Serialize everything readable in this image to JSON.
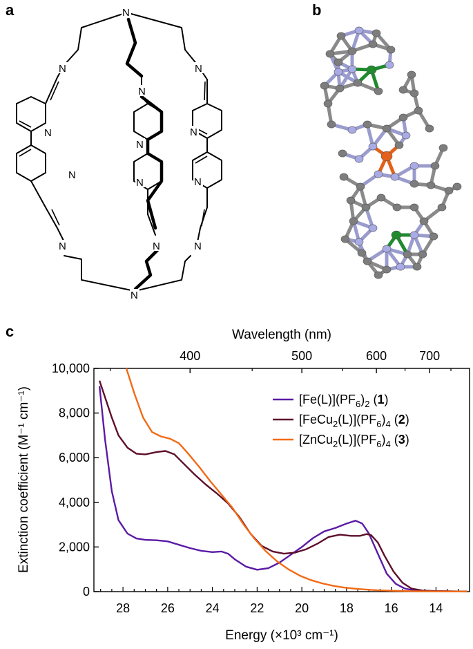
{
  "panels": {
    "a_label": "a",
    "b_label": "b",
    "c_label": "c"
  },
  "structure": {
    "nitrogen_label": "N"
  },
  "crystal": {
    "colors": {
      "carbon": "#7d7d7d",
      "nitrogen": "#a9abe6",
      "copper": "#1f8a2e",
      "iron": "#e2611c"
    }
  },
  "chart_data": {
    "type": "line",
    "xlabel": "Energy (×10³ cm⁻¹)",
    "x2label": "Wavelength (nm)",
    "ylabel": "Extinction coefficient (M⁻¹ cm⁻¹)",
    "xlim": [
      29.3,
      12.5
    ],
    "ylim": [
      0,
      10000
    ],
    "x_ticks": [
      28,
      26,
      24,
      22,
      20,
      18,
      16,
      14
    ],
    "x_tick_labels": [
      "28",
      "26",
      "24",
      "22",
      "20",
      "18",
      "16",
      "14"
    ],
    "y_ticks": [
      0,
      2000,
      4000,
      6000,
      8000,
      10000
    ],
    "y_tick_labels": [
      "0",
      "2,000",
      "4,000",
      "6,000",
      "8,000",
      "10,000"
    ],
    "x2_ticks": [
      400,
      500,
      600,
      700
    ],
    "x2_tick_labels": [
      "400",
      "500",
      "600",
      "700"
    ],
    "legend_position": "top-right",
    "series": [
      {
        "legend_parts": [
          "[Fe(L)](PF",
          "6",
          ")",
          "2",
          " (",
          "1",
          ")"
        ],
        "color": "#5b1aa6",
        "points": [
          [
            29.05,
            9200
          ],
          [
            28.8,
            6800
          ],
          [
            28.5,
            4500
          ],
          [
            28.2,
            3200
          ],
          [
            27.8,
            2600
          ],
          [
            27.4,
            2380
          ],
          [
            27,
            2320
          ],
          [
            26.5,
            2300
          ],
          [
            26,
            2250
          ],
          [
            25.5,
            2100
          ],
          [
            25,
            1950
          ],
          [
            24.5,
            1830
          ],
          [
            24,
            1770
          ],
          [
            23.6,
            1800
          ],
          [
            23.3,
            1700
          ],
          [
            23,
            1450
          ],
          [
            22.5,
            1120
          ],
          [
            22,
            980
          ],
          [
            21.5,
            1050
          ],
          [
            21,
            1300
          ],
          [
            20.5,
            1650
          ],
          [
            20,
            2000
          ],
          [
            19.5,
            2400
          ],
          [
            19,
            2700
          ],
          [
            18.5,
            2850
          ],
          [
            18,
            3050
          ],
          [
            17.6,
            3180
          ],
          [
            17.3,
            3050
          ],
          [
            17,
            2600
          ],
          [
            16.6,
            1700
          ],
          [
            16.2,
            800
          ],
          [
            15.8,
            350
          ],
          [
            15.4,
            140
          ],
          [
            15,
            60
          ],
          [
            14.5,
            30
          ],
          [
            14,
            20
          ],
          [
            13,
            10
          ],
          [
            12.6,
            5
          ]
        ]
      },
      {
        "legend_parts": [
          "[FeCu",
          "2",
          "(L)](PF",
          "6",
          ")",
          "4",
          " (",
          "2",
          ")"
        ],
        "color": "#5d0f2b",
        "points": [
          [
            29.05,
            9450
          ],
          [
            28.8,
            8700
          ],
          [
            28.5,
            7800
          ],
          [
            28.2,
            7000
          ],
          [
            27.8,
            6450
          ],
          [
            27.4,
            6180
          ],
          [
            27,
            6150
          ],
          [
            26.5,
            6250
          ],
          [
            26.1,
            6300
          ],
          [
            25.7,
            6150
          ],
          [
            25.3,
            5750
          ],
          [
            24.8,
            5250
          ],
          [
            24.3,
            4800
          ],
          [
            23.8,
            4400
          ],
          [
            23.3,
            3950
          ],
          [
            22.8,
            3350
          ],
          [
            22.3,
            2600
          ],
          [
            21.8,
            2050
          ],
          [
            21.3,
            1800
          ],
          [
            20.8,
            1700
          ],
          [
            20.3,
            1750
          ],
          [
            19.8,
            1900
          ],
          [
            19.3,
            2150
          ],
          [
            18.8,
            2450
          ],
          [
            18.3,
            2550
          ],
          [
            17.8,
            2500
          ],
          [
            17.4,
            2500
          ],
          [
            17.1,
            2580
          ],
          [
            16.9,
            2530
          ],
          [
            16.6,
            2200
          ],
          [
            16.3,
            1600
          ],
          [
            15.9,
            900
          ],
          [
            15.5,
            400
          ],
          [
            15.1,
            140
          ],
          [
            14.6,
            50
          ],
          [
            14,
            25
          ],
          [
            13,
            10
          ],
          [
            12.6,
            5
          ]
        ]
      },
      {
        "legend_parts": [
          "[ZnCu",
          "2",
          "(L)](PF",
          "6",
          ")",
          "4",
          " (",
          "3",
          ")"
        ],
        "color": "#f26a16",
        "points": [
          [
            27.85,
            10000
          ],
          [
            27.5,
            8900
          ],
          [
            27.1,
            7800
          ],
          [
            26.7,
            7150
          ],
          [
            26.3,
            6950
          ],
          [
            25.9,
            6850
          ],
          [
            25.5,
            6650
          ],
          [
            25.1,
            6200
          ],
          [
            24.6,
            5600
          ],
          [
            24.1,
            4950
          ],
          [
            23.6,
            4350
          ],
          [
            23.1,
            3750
          ],
          [
            22.6,
            3000
          ],
          [
            22.1,
            2350
          ],
          [
            21.6,
            1800
          ],
          [
            21.1,
            1350
          ],
          [
            20.6,
            1000
          ],
          [
            20.1,
            720
          ],
          [
            19.6,
            520
          ],
          [
            19.1,
            370
          ],
          [
            18.6,
            260
          ],
          [
            18.1,
            180
          ],
          [
            17.6,
            130
          ],
          [
            17.1,
            90
          ],
          [
            16.6,
            60
          ],
          [
            16,
            40
          ],
          [
            15,
            20
          ],
          [
            14,
            10
          ],
          [
            13,
            5
          ],
          [
            12.6,
            3
          ]
        ]
      }
    ]
  }
}
